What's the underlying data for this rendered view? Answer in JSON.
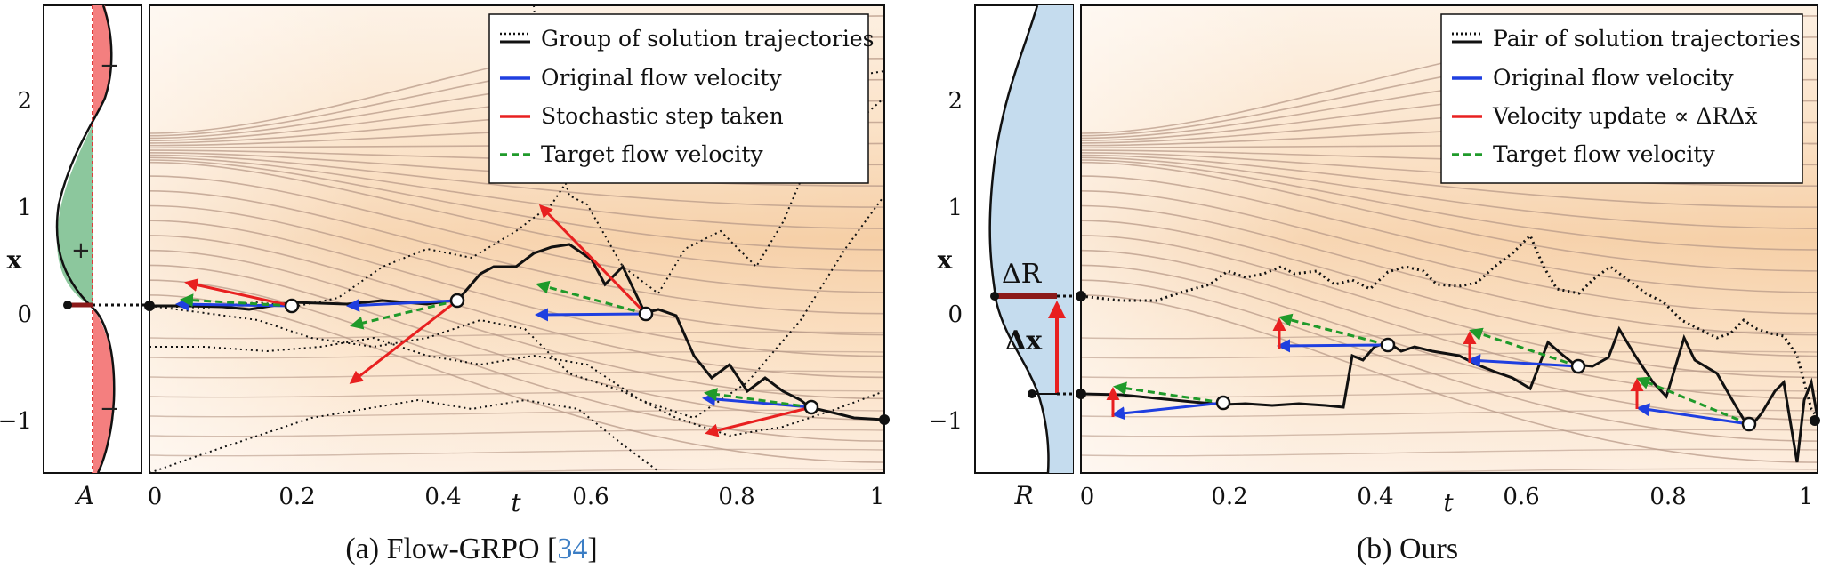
{
  "panel_a": {
    "caption_prefix": "(a) Flow-GRPO [",
    "caption_ref": "34",
    "caption_suffix": "]",
    "side_label": "A",
    "plus_sign": "+",
    "minus_sign_top": "−",
    "minus_sign_bottom": "−",
    "x_label": "t",
    "y_label": "x",
    "x_ticks": [
      "0",
      "0.2",
      "0.4",
      "0.6",
      "0.8",
      "1"
    ],
    "y_ticks": [
      "2",
      "1",
      "0",
      "−1"
    ],
    "legend": [
      {
        "label": "Group of solution trajectories",
        "style": "dotted-solid"
      },
      {
        "label": "Original flow velocity",
        "style": "blue"
      },
      {
        "label": "Stochastic step taken",
        "style": "red"
      },
      {
        "label": "Target flow velocity",
        "style": "green-dashed"
      }
    ]
  },
  "panel_b": {
    "caption": "(b) Ours",
    "side_label": "R",
    "delta_r": "ΔR",
    "delta_x": "Δx",
    "x_label": "t",
    "y_label": "x",
    "x_ticks": [
      "0",
      "0.2",
      "0.4",
      "0.6",
      "0.8",
      "1"
    ],
    "y_ticks": [
      "2",
      "1",
      "0",
      "−1"
    ],
    "legend": [
      {
        "label": "Pair of solution trajectories",
        "style": "dotted-solid"
      },
      {
        "label": "Original flow velocity",
        "style": "blue"
      },
      {
        "label": "Velocity update ∝ ΔRΔx̄",
        "style": "red"
      },
      {
        "label": "Target flow velocity",
        "style": "green-dashed"
      }
    ]
  },
  "colors": {
    "blue": "#1f3fe0",
    "red": "#e82020",
    "green": "#1f9a2a",
    "green_fill": "#8cc79d",
    "red_fill": "#f47f7f",
    "blue_fill": "#c5dcee",
    "dark_red": "#8b1a1a",
    "field_bg": "#fbe6cf",
    "flow_line": "#b89a88"
  }
}
